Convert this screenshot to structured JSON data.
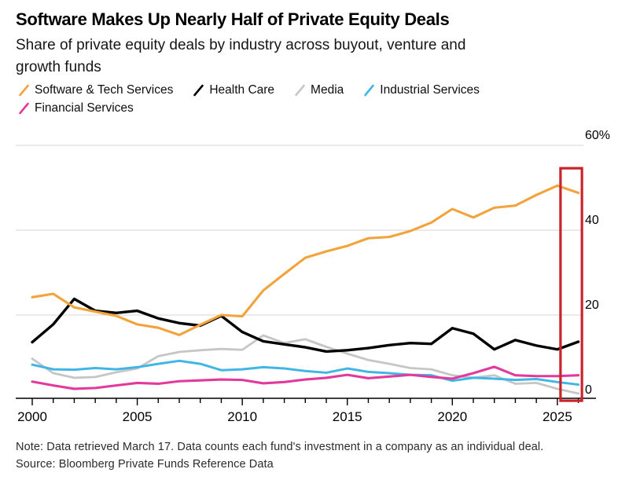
{
  "colors": {
    "background": "#ffffff",
    "grid": "#d4d4d4",
    "axis": "#000000",
    "text": "#000000",
    "highlight_box": "#c9232b"
  },
  "footer": {
    "note": "Note: Data retrieved March 17. Data counts each fund's investment in a company as an individual deal.",
    "source": "Source: Bloomberg Private Funds Reference Data"
  },
  "chart_data": {
    "type": "line",
    "title": "Software Makes Up Nearly Half of Private Equity Deals",
    "subtitle_lines": [
      "Share of private equity deals by industry across buyout, venture and",
      "growth funds"
    ],
    "legend_position": "top",
    "grid": "horizontal",
    "x": [
      2000,
      2001,
      2002,
      2003,
      2004,
      2005,
      2006,
      2007,
      2008,
      2009,
      2010,
      2011,
      2012,
      2013,
      2014,
      2015,
      2016,
      2017,
      2018,
      2019,
      2020,
      2021,
      2022,
      2023,
      2024,
      2025,
      2026
    ],
    "x_axis": {
      "min": 2000,
      "max": 2026,
      "tick_interval": 1,
      "labeled_ticks": [
        2000,
        2005,
        2010,
        2015,
        2020,
        2025
      ]
    },
    "y_axis": {
      "min": 0,
      "max": 60,
      "unit": "%",
      "ticks": [
        {
          "value": 0,
          "label": "0"
        },
        {
          "value": 20,
          "label": "20"
        },
        {
          "value": 40,
          "label": "40"
        },
        {
          "value": 60,
          "label": "60%"
        }
      ]
    },
    "series": [
      {
        "name": "Software & Tech Services",
        "color": "#f2a33c",
        "values": [
          24.2,
          25.0,
          21.8,
          20.8,
          19.8,
          17.8,
          17.0,
          15.3,
          17.7,
          20.0,
          19.7,
          25.8,
          29.7,
          33.5,
          35.0,
          36.3,
          38.1,
          38.4,
          39.8,
          41.8,
          45.0,
          43.0,
          45.3,
          45.8,
          48.3,
          50.5,
          48.8
        ]
      },
      {
        "name": "Health Care",
        "color": "#000000",
        "values": [
          13.6,
          17.8,
          23.8,
          21.0,
          20.5,
          21.0,
          19.2,
          18.1,
          17.5,
          19.8,
          16.0,
          13.8,
          13.1,
          12.4,
          11.4,
          11.7,
          12.2,
          12.9,
          13.4,
          13.2,
          16.9,
          15.6,
          11.9,
          14.1,
          12.8,
          11.9,
          13.7
        ]
      },
      {
        "name": "Media",
        "color": "#c6c6c6",
        "values": [
          9.7,
          6.3,
          5.2,
          5.4,
          6.5,
          7.4,
          10.3,
          11.3,
          11.7,
          12.0,
          11.8,
          15.2,
          13.4,
          14.3,
          12.5,
          10.9,
          9.4,
          8.5,
          7.5,
          7.2,
          5.8,
          5.2,
          5.8,
          3.8,
          4.0,
          2.6,
          1.5
        ]
      },
      {
        "name": "Industrial Services",
        "color": "#41b6e6",
        "values": [
          8.3,
          7.2,
          7.1,
          7.5,
          7.2,
          7.7,
          8.5,
          9.2,
          8.5,
          7.0,
          7.2,
          7.7,
          7.4,
          6.8,
          6.4,
          7.4,
          6.6,
          6.3,
          5.9,
          5.8,
          4.5,
          5.2,
          5.0,
          4.7,
          4.9,
          4.2,
          3.6
        ]
      },
      {
        "name": "Financial Services",
        "color": "#e23a9c",
        "values": [
          4.3,
          3.4,
          2.6,
          2.8,
          3.4,
          4.0,
          3.8,
          4.4,
          4.6,
          4.8,
          4.7,
          3.9,
          4.2,
          4.8,
          5.2,
          5.9,
          5.1,
          5.5,
          5.9,
          5.4,
          5.0,
          6.3,
          7.8,
          5.8,
          5.6,
          5.6,
          5.8
        ]
      }
    ],
    "annotation": {
      "type": "highlight-box",
      "x_range": [
        2025.15,
        2026.17
      ],
      "y_range": [
        -0.2,
        54.6
      ],
      "color": "#c9232b"
    }
  }
}
